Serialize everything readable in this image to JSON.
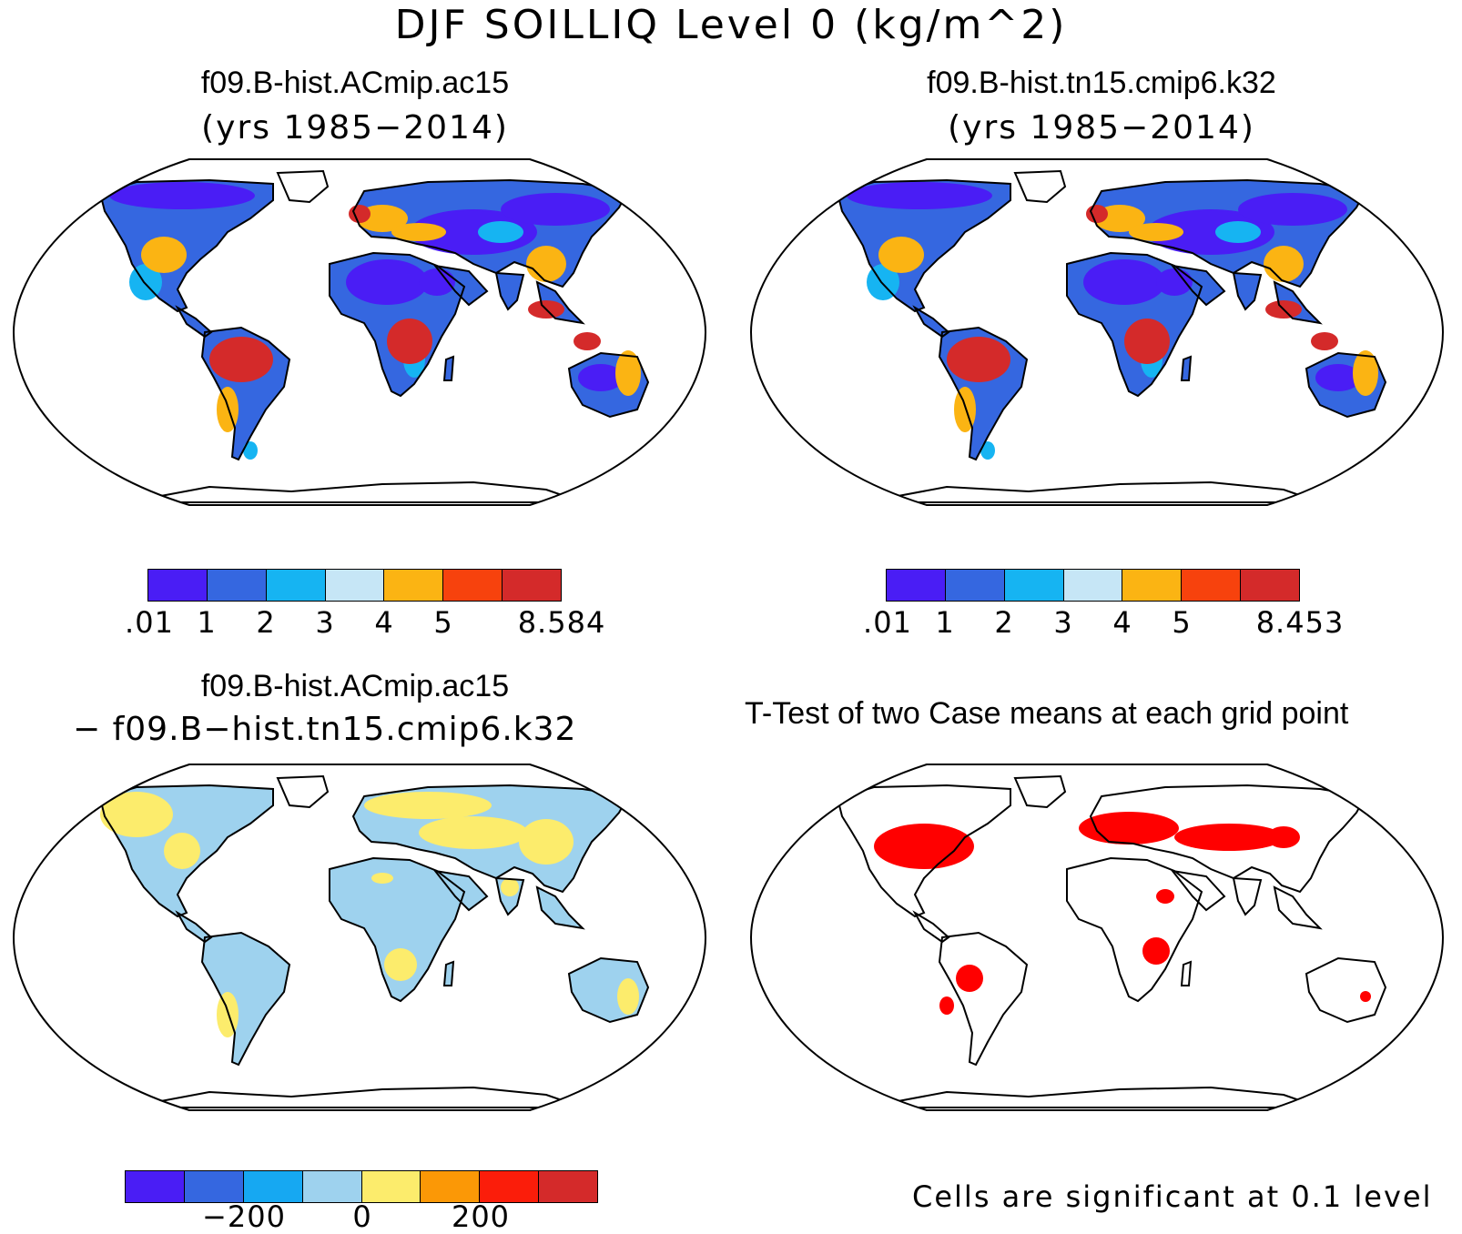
{
  "title": "DJF SOILLIQ Level 0 (kg/m^2)",
  "panels": [
    {
      "id": "case1",
      "name": "f09.B-hist.ACmip.ac15",
      "subtitle": "(yrs 1985−2014)",
      "colorbar": {
        "colors": [
          "#4a1df5",
          "#3567e0",
          "#16b4f2",
          "#c6e6f6",
          "#fbb413",
          "#f7420d",
          "#d42a2a"
        ],
        "labels": [
          ".01",
          "1",
          "2",
          "3",
          "4",
          "5",
          "8.584"
        ]
      }
    },
    {
      "id": "case2",
      "name": "f09.B-hist.tn15.cmip6.k32",
      "subtitle": "(yrs 1985−2014)",
      "colorbar": {
        "colors": [
          "#4a1df5",
          "#3567e0",
          "#16b4f2",
          "#c6e6f6",
          "#fbb413",
          "#f7420d",
          "#d42a2a"
        ],
        "labels": [
          ".01",
          "1",
          "2",
          "3",
          "4",
          "5",
          "8.453"
        ]
      }
    },
    {
      "id": "difference",
      "name": "f09.B-hist.ACmip.ac15",
      "subtitle": "− f09.B−hist.tn15.cmip6.k32",
      "colorbar": {
        "colors": [
          "#4a1df5",
          "#3567e0",
          "#16a8f2",
          "#9ed2ee",
          "#fcec6c",
          "#fb9806",
          "#fb1d0a",
          "#d42a2a"
        ],
        "labels": [
          "−200",
          "0",
          "200"
        ]
      }
    },
    {
      "id": "ttest",
      "name": "T-Test of two Case means at each grid point",
      "note": "Cells are significant at 0.1 level"
    }
  ],
  "map_colors": {
    "land_wet": "#d42a2a",
    "land_moist": "#fbb413",
    "land_dry": "#4a1df5",
    "land_mid": "#16b4f2",
    "diff_pos": "#fcec6c",
    "diff_neg": "#9ed2ee",
    "significant": "#ff0000",
    "coastline": "#000000"
  }
}
